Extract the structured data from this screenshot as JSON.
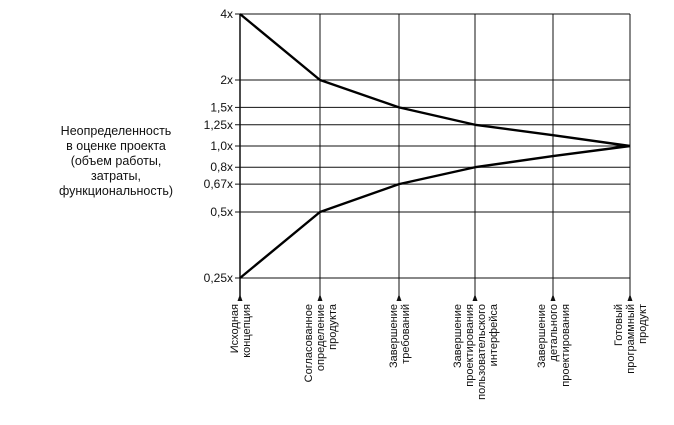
{
  "chart_data": {
    "type": "line",
    "title": "",
    "ylabel": "Неопределенность\nв оценке проекта\n(объем работы,\nзатраты,\nфункциональность)",
    "xlabel": "",
    "y_scale": "log",
    "yticks": [
      {
        "value": 4,
        "label": "4x"
      },
      {
        "value": 2,
        "label": "2x"
      },
      {
        "value": 1.5,
        "label": "1,5x"
      },
      {
        "value": 1.25,
        "label": "1,25x"
      },
      {
        "value": 1.0,
        "label": "1,0x"
      },
      {
        "value": 0.8,
        "label": "0,8x"
      },
      {
        "value": 0.67,
        "label": "0,67x"
      },
      {
        "value": 0.5,
        "label": "0,5x"
      },
      {
        "value": 0.25,
        "label": "0,25x"
      }
    ],
    "ylim": [
      0.25,
      4
    ],
    "categories": [
      [
        "Исходная",
        "концепция"
      ],
      [
        "Согласованное",
        "определение",
        "продукта"
      ],
      [
        "Завершение",
        "требований"
      ],
      [
        "Завершение",
        "проектирования",
        "пользовательского",
        "интерфейса"
      ],
      [
        "Завершение",
        "детального",
        "проектирования"
      ],
      [
        "Готовый",
        "программный",
        "продукт"
      ]
    ],
    "series": [
      {
        "name": "upper",
        "values": [
          4,
          2,
          1.5,
          1.25,
          1.12,
          1.0
        ]
      },
      {
        "name": "lower",
        "values": [
          0.25,
          0.5,
          0.67,
          0.8,
          0.9,
          1.0
        ]
      }
    ]
  }
}
